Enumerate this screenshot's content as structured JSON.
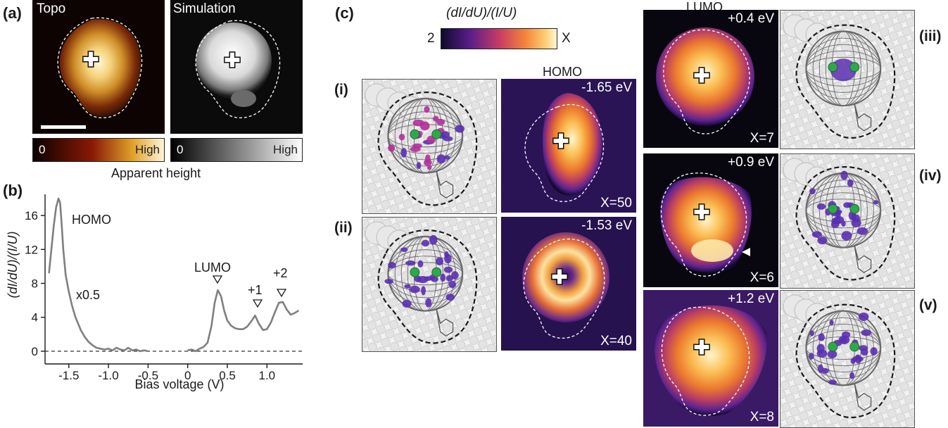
{
  "panel_a": {
    "label": "(a)",
    "topo_title": "Topo",
    "sim_title": "Simulation",
    "topo_bar": {
      "min": "0",
      "max": "High"
    },
    "sim_bar": {
      "min": "0",
      "max": "High"
    },
    "caption": "Apparent height"
  },
  "panel_b": {
    "label": "(b)",
    "ylabel": "(dI/dU)/(I/U)",
    "xlabel": "Bias voltage (V)",
    "ann_homo": "HOMO",
    "ann_scale": "x0.5",
    "ann_lumo": "LUMO",
    "ann_p1": "+1",
    "ann_p2": "+2"
  },
  "chart_data": {
    "type": "line",
    "xlabel": "Bias voltage (V)",
    "ylabel": "(dI/dU)/(I/U)",
    "xlim": [
      -1.8,
      1.45
    ],
    "ylim": [
      -1.5,
      18.5
    ],
    "x_ticks": [
      "-1.5",
      "-1.0",
      "-0.5",
      "0",
      "0.5",
      "1.0"
    ],
    "x_tick_values": [
      -1.5,
      -1.0,
      -0.5,
      0,
      0.5,
      1.0
    ],
    "y_ticks": [
      "0",
      "4",
      "8",
      "12",
      "16"
    ],
    "y_tick_values": [
      0,
      4,
      8,
      12,
      16
    ],
    "zero_line": "dashed",
    "series": [
      {
        "segment": "negative",
        "x": [
          -1.75,
          -1.72,
          -1.69,
          -1.66,
          -1.63,
          -1.61,
          -1.59,
          -1.57,
          -1.54,
          -1.5,
          -1.46,
          -1.42,
          -1.38,
          -1.35,
          -1.3,
          -1.25,
          -1.2,
          -1.15,
          -1.1,
          -1.05,
          -1.0,
          -0.95,
          -0.9,
          -0.85,
          -0.8,
          -0.75,
          -0.7,
          -0.65,
          -0.6,
          -0.55,
          -0.5
        ],
        "y": [
          9.2,
          12.0,
          14.8,
          17.0,
          18.0,
          17.5,
          15.0,
          12.0,
          9.0,
          7.0,
          5.4,
          4.1,
          3.2,
          2.5,
          1.7,
          1.1,
          0.7,
          0.4,
          0.3,
          0.2,
          0.3,
          0.1,
          0.4,
          0.2,
          0.1,
          0.4,
          0.1,
          0.2,
          0.0,
          0.1,
          0.0
        ]
      },
      {
        "segment": "positive",
        "x": [
          0.0,
          0.05,
          0.1,
          0.15,
          0.2,
          0.25,
          0.3,
          0.34,
          0.38,
          0.42,
          0.46,
          0.5,
          0.55,
          0.6,
          0.65,
          0.7,
          0.75,
          0.8,
          0.85,
          0.9,
          0.95,
          1.0,
          1.05,
          1.1,
          1.15,
          1.2,
          1.25,
          1.3,
          1.35,
          1.4
        ],
        "y": [
          0.1,
          0.2,
          0.0,
          0.3,
          0.5,
          1.0,
          3.0,
          5.7,
          7.2,
          6.5,
          4.8,
          3.6,
          3.0,
          2.7,
          2.6,
          2.6,
          2.9,
          3.5,
          4.2,
          3.2,
          2.5,
          2.6,
          3.4,
          4.6,
          5.7,
          5.8,
          4.9,
          4.3,
          4.5,
          4.8
        ]
      }
    ]
  },
  "panel_c": {
    "label": "(c)",
    "colorbar": {
      "title": "(dI/dU)/(I/U)",
      "min": "2",
      "max": "X"
    },
    "homo_header": "HOMO",
    "lumo_header": "LUMO",
    "maps": {
      "homo1": {
        "energy": "-1.65 eV",
        "x": "X=50"
      },
      "homo2": {
        "energy": "-1.53 eV",
        "x": "X=40"
      },
      "lumo": {
        "energy": "+0.4 eV",
        "x": "X=7"
      },
      "lumo1": {
        "energy": "+0.9 eV",
        "x": "X=6"
      },
      "lumo2": {
        "energy": "+1.2 eV",
        "x": "X=8"
      }
    },
    "roman": {
      "i": "(i)",
      "ii": "(ii)",
      "iii": "(iii)",
      "iv": "(iv)",
      "v": "(v)"
    }
  },
  "colors": {
    "orbital_purple": "#5a2fb0",
    "orbital_magenta": "#b0309a",
    "atom_green": "#2fa84a",
    "curve_gray": "#7f7f7f"
  }
}
